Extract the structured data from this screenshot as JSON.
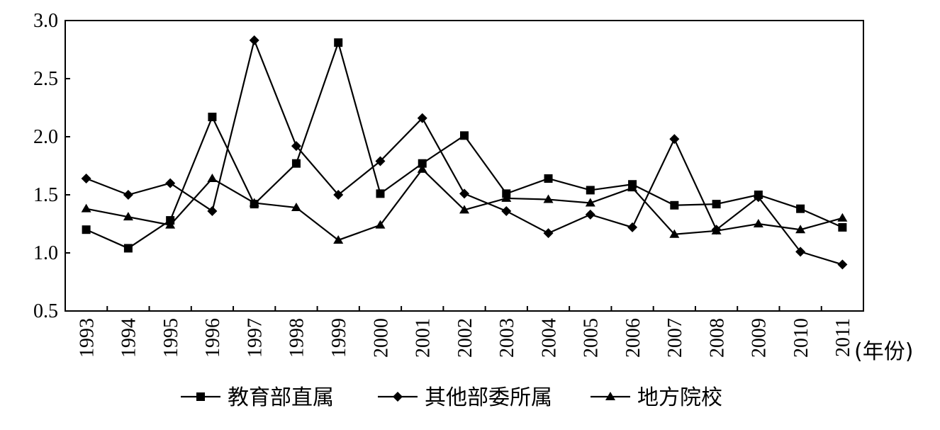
{
  "chart_data": {
    "type": "line",
    "x": [
      "1993",
      "1994",
      "1995",
      "1996",
      "1997",
      "1998",
      "1999",
      "2000",
      "2001",
      "2002",
      "2003",
      "2004",
      "2005",
      "2006",
      "2007",
      "2008",
      "2009",
      "2010",
      "2011"
    ],
    "x_unit": "(年份)",
    "ylim": [
      0.5,
      3.0
    ],
    "yticks": [
      "0.5",
      "1.0",
      "1.5",
      "2.0",
      "2.5",
      "3.0"
    ],
    "grid": false,
    "legend_position": "bottom",
    "series": [
      {
        "name": "教育部直属",
        "marker": "square",
        "values": [
          1.2,
          1.04,
          1.28,
          2.17,
          1.42,
          1.77,
          2.81,
          1.51,
          1.77,
          2.01,
          1.51,
          1.64,
          1.54,
          1.59,
          1.41,
          1.42,
          1.5,
          1.38,
          1.22
        ]
      },
      {
        "name": "其他部委所属",
        "marker": "diamond",
        "values": [
          1.64,
          1.5,
          1.6,
          1.36,
          2.83,
          1.92,
          1.5,
          1.79,
          2.16,
          1.51,
          1.36,
          1.17,
          1.33,
          1.22,
          1.98,
          1.2,
          1.48,
          1.01,
          0.9
        ]
      },
      {
        "name": "地方院校",
        "marker": "triangle",
        "values": [
          1.38,
          1.31,
          1.24,
          1.64,
          1.43,
          1.39,
          1.11,
          1.24,
          1.72,
          1.37,
          1.47,
          1.46,
          1.43,
          1.56,
          1.16,
          1.19,
          1.25,
          1.2,
          1.3
        ]
      }
    ]
  }
}
